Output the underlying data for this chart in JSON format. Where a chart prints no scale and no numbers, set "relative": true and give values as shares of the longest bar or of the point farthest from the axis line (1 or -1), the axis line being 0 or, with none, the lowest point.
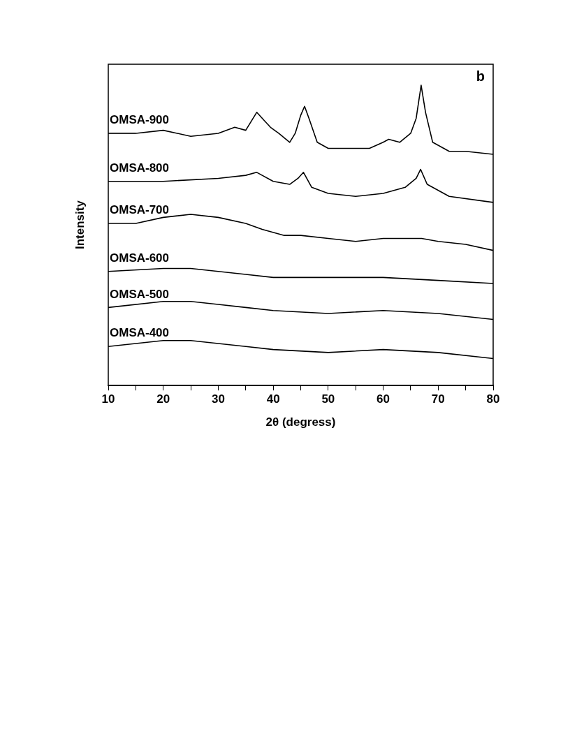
{
  "chart_data": {
    "type": "line",
    "relative": true,
    "xlabel": "2θ (degress)",
    "ylabel": "Intensity",
    "annotations": [
      "b"
    ],
    "xlim": [
      10,
      80
    ],
    "xticks": [
      10,
      {
        "value": 15,
        "label": null
      },
      20,
      {
        "value": 25,
        "label": null
      },
      30,
      {
        "value": 35,
        "label": null
      },
      40,
      {
        "value": 45,
        "label": null
      },
      50,
      {
        "value": 55,
        "label": null
      },
      60,
      {
        "value": 65,
        "label": null
      },
      70,
      {
        "value": 75,
        "label": null
      },
      80
    ],
    "grid": false,
    "legend": false,
    "marker": "none",
    "line_style": "solid",
    "series": [
      {
        "name": "OMSA-900",
        "color": "#000000",
        "x": [
          10,
          15,
          20,
          25,
          30,
          33,
          35,
          37,
          38.5,
          39.5,
          41,
          43,
          44,
          45,
          45.7,
          46.5,
          48,
          50,
          55,
          57.5,
          60,
          61,
          63,
          65,
          66,
          66.9,
          67.7,
          69,
          72,
          75,
          80
        ],
        "values": [
          0.84,
          0.84,
          0.85,
          0.83,
          0.84,
          0.86,
          0.85,
          0.91,
          0.88,
          0.86,
          0.84,
          0.81,
          0.84,
          0.9,
          0.93,
          0.89,
          0.81,
          0.79,
          0.79,
          0.79,
          0.81,
          0.82,
          0.81,
          0.84,
          0.89,
          1.0,
          0.91,
          0.81,
          0.78,
          0.78,
          0.77
        ]
      },
      {
        "name": "OMSA-800",
        "color": "#000000",
        "x": [
          10,
          20,
          30,
          35,
          37,
          40,
          43,
          44.5,
          45.5,
          47,
          50,
          55,
          60,
          64,
          66,
          66.8,
          68,
          72,
          80
        ],
        "values": [
          0.68,
          0.68,
          0.69,
          0.7,
          0.71,
          0.68,
          0.67,
          0.69,
          0.71,
          0.66,
          0.64,
          0.63,
          0.64,
          0.66,
          0.69,
          0.72,
          0.67,
          0.63,
          0.61
        ]
      },
      {
        "name": "OMSA-700",
        "color": "#000000",
        "x": [
          10,
          15,
          20,
          25,
          30,
          35,
          38,
          42,
          45,
          50,
          55,
          60,
          65,
          67,
          70,
          75,
          80
        ],
        "values": [
          0.54,
          0.54,
          0.56,
          0.57,
          0.56,
          0.54,
          0.52,
          0.5,
          0.5,
          0.49,
          0.48,
          0.49,
          0.49,
          0.49,
          0.48,
          0.47,
          0.45
        ]
      },
      {
        "name": "OMSA-600",
        "color": "#000000",
        "x": [
          10,
          20,
          25,
          30,
          35,
          40,
          50,
          55,
          60,
          70,
          80
        ],
        "values": [
          0.38,
          0.39,
          0.39,
          0.38,
          0.37,
          0.36,
          0.36,
          0.36,
          0.36,
          0.35,
          0.34
        ]
      },
      {
        "name": "OMSA-500",
        "color": "#000000",
        "x": [
          10,
          20,
          25,
          30,
          35,
          40,
          50,
          60,
          70,
          80
        ],
        "values": [
          0.26,
          0.28,
          0.28,
          0.27,
          0.26,
          0.25,
          0.24,
          0.25,
          0.24,
          0.22
        ]
      },
      {
        "name": "OMSA-400",
        "color": "#000000",
        "x": [
          10,
          20,
          25,
          30,
          35,
          40,
          50,
          60,
          70,
          80
        ],
        "values": [
          0.13,
          0.15,
          0.15,
          0.14,
          0.13,
          0.12,
          0.11,
          0.12,
          0.11,
          0.09
        ]
      }
    ]
  }
}
